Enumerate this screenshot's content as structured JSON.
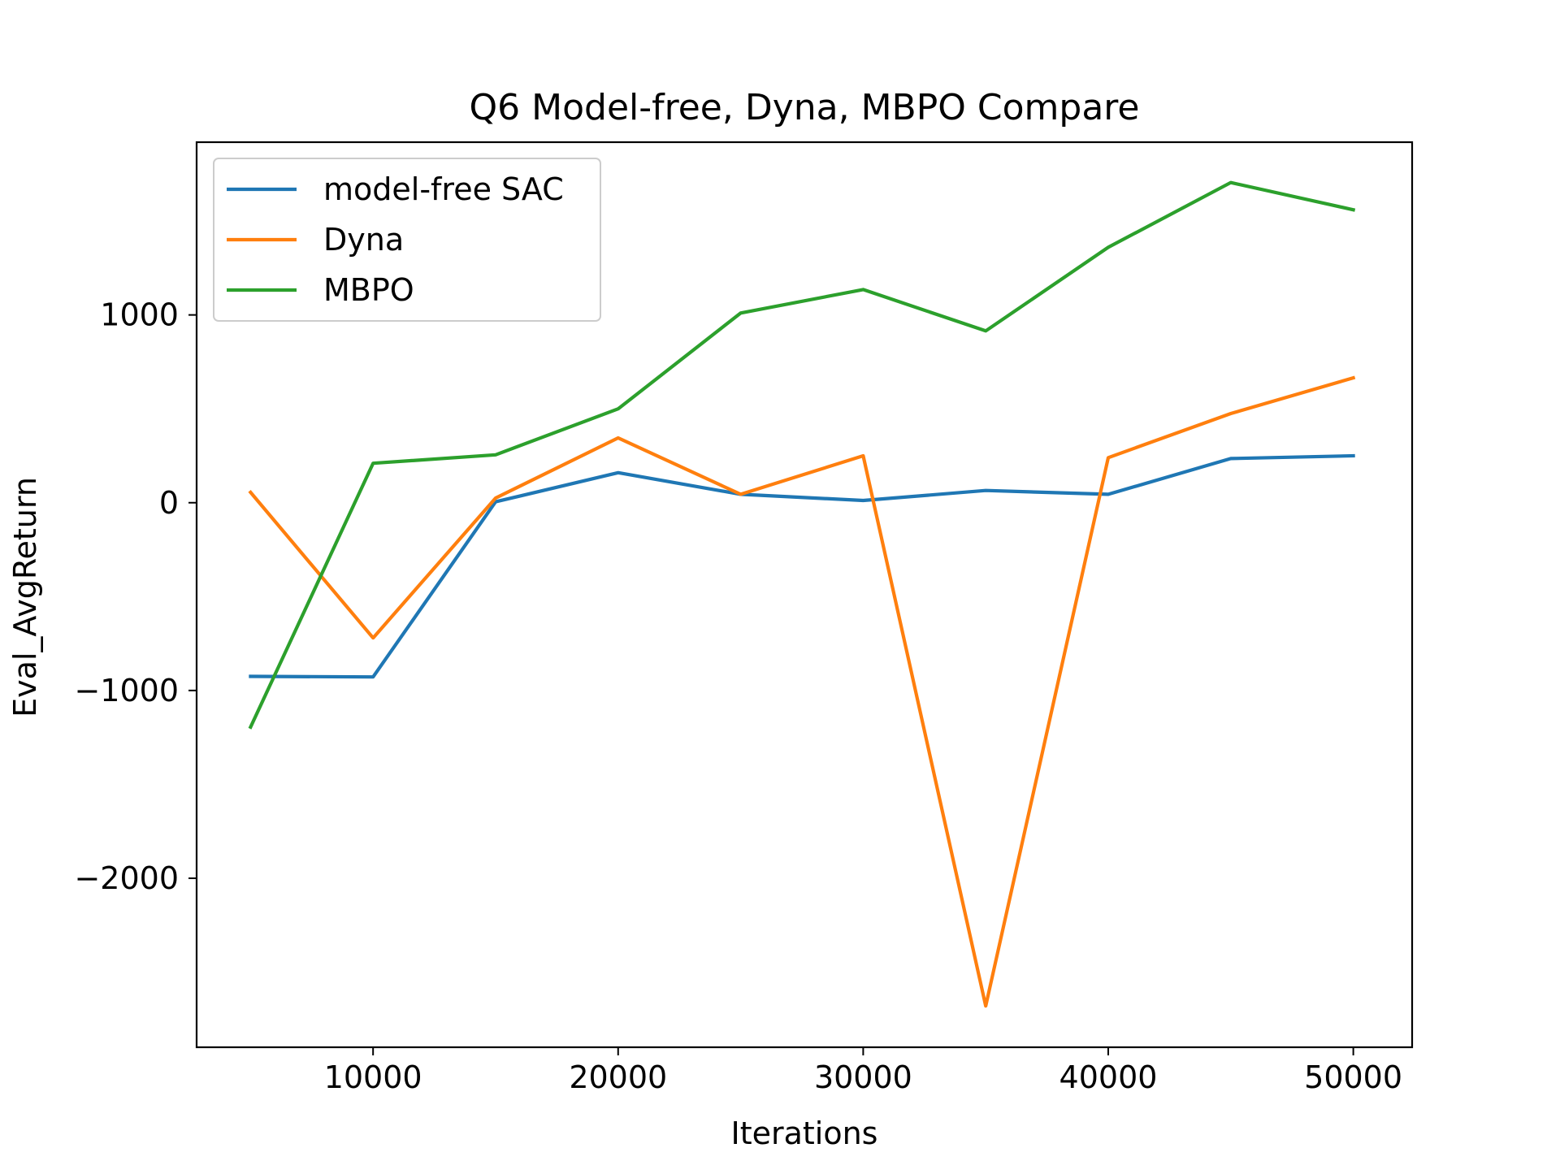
{
  "chart_data": {
    "type": "line",
    "title": "Q6 Model-free, Dyna, MBPO Compare",
    "xlabel": "Iterations",
    "ylabel": "Eval_AvgReturn",
    "x": [
      5000,
      10000,
      15000,
      20000,
      25000,
      30000,
      35000,
      40000,
      45000,
      50000
    ],
    "xlim": [
      2800,
      52400
    ],
    "ylim": [
      -2900,
      1920
    ],
    "xticks": [
      10000,
      20000,
      30000,
      40000,
      50000
    ],
    "xtick_labels": [
      "10000",
      "20000",
      "30000",
      "40000",
      "50000"
    ],
    "yticks": [
      1000,
      0,
      -1000,
      -2000
    ],
    "ytick_labels": [
      "1000",
      "0",
      "−1000",
      "−2000"
    ],
    "grid": false,
    "legend_position": "top-left",
    "series": [
      {
        "name": "model-free SAC",
        "color": "#1f77b4",
        "values": [
          -925,
          -928,
          5,
          160,
          45,
          12,
          65,
          45,
          235,
          250
        ]
      },
      {
        "name": "Dyna",
        "color": "#ff7f0e",
        "values": [
          55,
          -720,
          25,
          345,
          45,
          250,
          -2680,
          240,
          475,
          665
        ]
      },
      {
        "name": "MBPO",
        "color": "#2ca02c",
        "values": [
          -1195,
          210,
          255,
          500,
          1010,
          1135,
          915,
          1360,
          1705,
          1560
        ]
      }
    ]
  }
}
